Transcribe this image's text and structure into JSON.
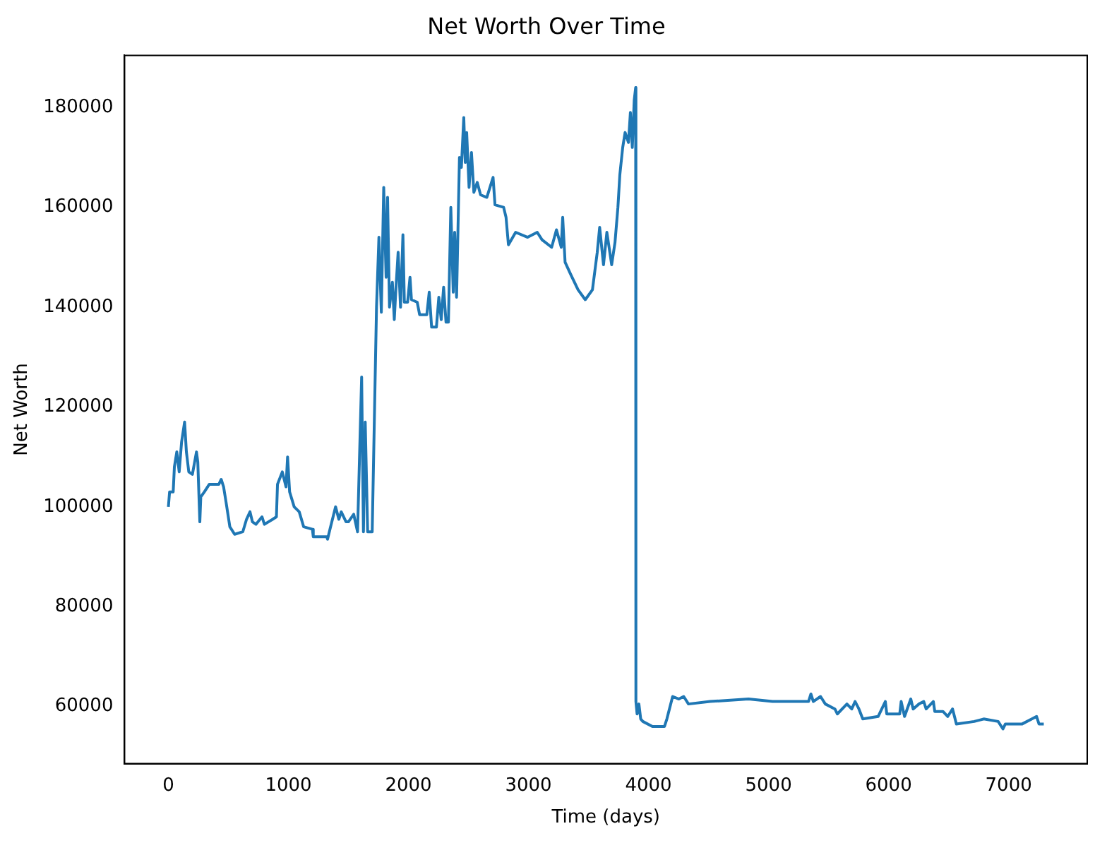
{
  "chart_data": {
    "type": "line",
    "title": "Net Worth Over Time",
    "xlabel": "Time (days)",
    "ylabel": "Net Worth",
    "marker": "none",
    "line_style": "solid",
    "grid": false,
    "legend": false,
    "xlim": [
      -365,
      7655
    ],
    "ylim": [
      48550,
      190450
    ],
    "xticks": [
      0,
      1000,
      2000,
      3000,
      4000,
      5000,
      6000,
      7000
    ],
    "yticks": [
      60000,
      80000,
      100000,
      120000,
      140000,
      160000,
      180000
    ],
    "series": [
      {
        "color": "#1f77b4",
        "x": [
          0,
          10,
          40,
          50,
          70,
          90,
          110,
          135,
          150,
          170,
          200,
          234,
          245,
          262,
          270,
          300,
          340,
          420,
          440,
          460,
          480,
          512,
          552,
          620,
          651,
          680,
          700,
          730,
          780,
          800,
          869,
          900,
          909,
          949,
          980,
          993,
          1010,
          1048,
          1090,
          1127,
          1200,
          1207,
          1320,
          1326,
          1346,
          1393,
          1420,
          1440,
          1480,
          1500,
          1544,
          1576,
          1610,
          1625,
          1640,
          1660,
          1698,
          1718,
          1734,
          1754,
          1774,
          1794,
          1814,
          1826,
          1842,
          1866,
          1882,
          1894,
          1914,
          1934,
          1954,
          1966,
          1993,
          2013,
          2025,
          2073,
          2093,
          2153,
          2173,
          2193,
          2233,
          2253,
          2273,
          2293,
          2313,
          2333,
          2353,
          2373,
          2385,
          2401,
          2425,
          2441,
          2461,
          2473,
          2485,
          2505,
          2525,
          2545,
          2573,
          2601,
          2653,
          2705,
          2721,
          2793,
          2813,
          2833,
          2893,
          2993,
          3073,
          3113,
          3193,
          3233,
          3273,
          3285,
          3305,
          3353,
          3413,
          3473,
          3533,
          3573,
          3593,
          3625,
          3653,
          3693,
          3721,
          3745,
          3761,
          3785,
          3805,
          3833,
          3849,
          3865,
          3881,
          3893,
          3895,
          3905,
          3920,
          3935,
          3953,
          4033,
          4133,
          4153,
          4201,
          4253,
          4293,
          4333,
          4513,
          4833,
          5033,
          5333,
          5353,
          5373,
          5433,
          5473,
          5553,
          5573,
          5653,
          5693,
          5721,
          5753,
          5785,
          5913,
          5973,
          5985,
          6093,
          6105,
          6133,
          6185,
          6205,
          6253,
          6293,
          6313,
          6373,
          6385,
          6453,
          6493,
          6533,
          6565,
          6713,
          6793,
          6913,
          6953,
          6973,
          7113,
          7233,
          7253,
          7293
        ],
        "values": [
          100000,
          103000,
          103000,
          108000,
          111000,
          107000,
          113000,
          117000,
          111000,
          107000,
          106500,
          111000,
          109000,
          97000,
          102000,
          103000,
          104500,
          104500,
          105500,
          104000,
          101000,
          96000,
          94500,
          95000,
          97500,
          99000,
          97000,
          96500,
          98000,
          96500,
          97500,
          98000,
          104500,
          107000,
          104000,
          110000,
          103000,
          100000,
          99000,
          96000,
          95500,
          94000,
          94000,
          93500,
          95500,
          100000,
          97500,
          99000,
          97000,
          97000,
          98500,
          95000,
          126000,
          95000,
          117000,
          95000,
          95000,
          120000,
          140000,
          154000,
          139000,
          164000,
          146000,
          162000,
          140000,
          145000,
          137500,
          143000,
          151000,
          140000,
          154500,
          141000,
          141000,
          146000,
          141500,
          141000,
          138500,
          138500,
          143000,
          136000,
          136000,
          142000,
          137500,
          144000,
          137000,
          137000,
          160000,
          143000,
          155000,
          142000,
          170000,
          168000,
          178000,
          169000,
          175000,
          164000,
          171000,
          163000,
          165000,
          162500,
          162000,
          166000,
          160500,
          160000,
          158000,
          152500,
          155000,
          154000,
          155000,
          153500,
          152000,
          155500,
          152000,
          158000,
          149000,
          146500,
          143500,
          141500,
          143500,
          151000,
          156000,
          148500,
          155000,
          148500,
          153000,
          160000,
          166500,
          172000,
          175000,
          173000,
          179000,
          172000,
          181500,
          184000,
          61000,
          58500,
          60500,
          57500,
          57000,
          56000,
          56000,
          57500,
          62000,
          61500,
          62000,
          60500,
          61000,
          61500,
          61000,
          61000,
          62500,
          61000,
          62000,
          60500,
          59500,
          58500,
          60500,
          59500,
          61000,
          59500,
          57500,
          58000,
          61000,
          58500,
          58500,
          61000,
          58000,
          61500,
          59500,
          60500,
          61000,
          59500,
          61000,
          59000,
          59000,
          58000,
          59500,
          56500,
          57000,
          57500,
          57000,
          55500,
          56500,
          56500,
          58000,
          56500,
          56500
        ]
      }
    ]
  }
}
